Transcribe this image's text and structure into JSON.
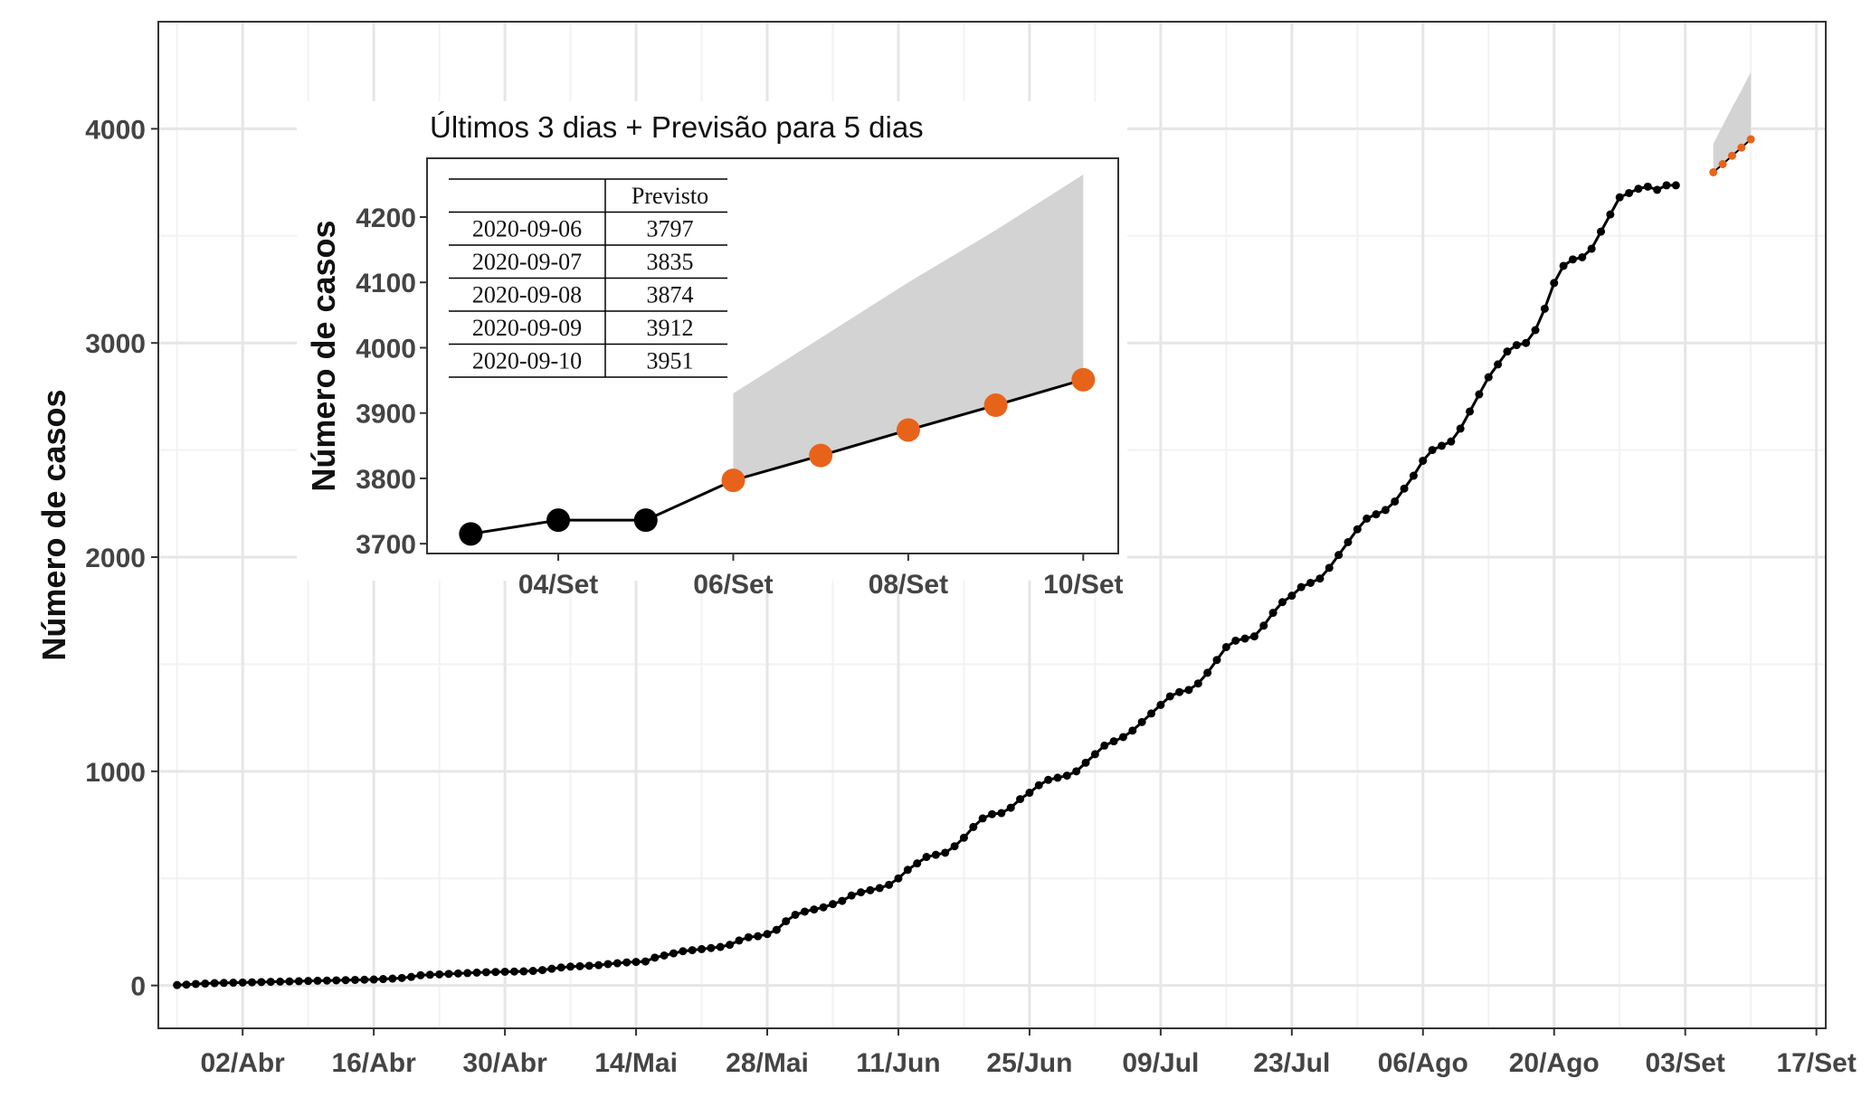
{
  "chart_data": [
    {
      "type": "line",
      "title": "",
      "xlabel": "",
      "ylabel": "Número de casos",
      "ylim": [
        -200,
        4500
      ],
      "xlim": [
        "2020-03-24",
        "2020-09-18"
      ],
      "x_ticks": [
        "02/Abr",
        "16/Abr",
        "30/Abr",
        "14/Mai",
        "28/Mai",
        "11/Jun",
        "25/Jun",
        "09/Jul",
        "23/Jul",
        "06/Ago",
        "20/Ago",
        "03/Set",
        "17/Set"
      ],
      "x_tick_dates": [
        "2020-04-02",
        "2020-04-16",
        "2020-04-30",
        "2020-05-14",
        "2020-05-28",
        "2020-06-11",
        "2020-06-25",
        "2020-07-09",
        "2020-07-23",
        "2020-08-06",
        "2020-08-20",
        "2020-09-03",
        "2020-09-17"
      ],
      "y_ticks": [
        0,
        1000,
        2000,
        3000,
        4000
      ],
      "grid": true,
      "series": [
        {
          "name": "",
          "color": "#000000",
          "x_start": "2020-03-26",
          "values": [
            2,
            4,
            7,
            9,
            11,
            12,
            13,
            14,
            15,
            16,
            17,
            18,
            19,
            20,
            21,
            22,
            23,
            24,
            25,
            26,
            27,
            28,
            30,
            32,
            35,
            40,
            48,
            50,
            52,
            54,
            56,
            58,
            60,
            62,
            63,
            64,
            65,
            66,
            68,
            72,
            78,
            84,
            88,
            90,
            92,
            95,
            100,
            104,
            108,
            110,
            112,
            130,
            140,
            150,
            160,
            165,
            170,
            175,
            180,
            190,
            210,
            225,
            230,
            240,
            260,
            300,
            330,
            345,
            355,
            365,
            380,
            395,
            420,
            435,
            445,
            455,
            470,
            500,
            540,
            570,
            600,
            610,
            620,
            650,
            690,
            740,
            780,
            800,
            805,
            830,
            870,
            900,
            935,
            960,
            970,
            980,
            1000,
            1040,
            1080,
            1120,
            1140,
            1160,
            1190,
            1230,
            1270,
            1310,
            1350,
            1370,
            1380,
            1410,
            1460,
            1520,
            1580,
            1610,
            1620,
            1630,
            1680,
            1740,
            1790,
            1820,
            1860,
            1880,
            1900,
            1950,
            2010,
            2070,
            2130,
            2180,
            2200,
            2220,
            2260,
            2320,
            2380,
            2450,
            2500,
            2520,
            2540,
            2600,
            2680,
            2760,
            2840,
            2900,
            2960,
            2990,
            3000,
            3060,
            3160,
            3280,
            3360,
            3390,
            3400,
            3440,
            3520,
            3600,
            3680,
            3700,
            3720,
            3730,
            3715,
            3736,
            3736
          ]
        },
        {
          "name": "",
          "color": "#E8631A",
          "x": [
            "2020-09-06",
            "2020-09-07",
            "2020-09-08",
            "2020-09-09",
            "2020-09-10"
          ],
          "values": [
            3797,
            3835,
            3874,
            3912,
            3951
          ],
          "band_low": [
            3797,
            3835,
            3874,
            3912,
            3951
          ],
          "band_high": [
            3930,
            4015,
            4100,
            4180,
            4265
          ]
        }
      ]
    },
    {
      "type": "line",
      "title": "Últimos 3 dias + Previsão para 5 dias",
      "xlabel": "",
      "ylabel": "Número de casos",
      "ylim": [
        3685,
        4290
      ],
      "x_ticks": [
        "04/Set",
        "06/Set",
        "08/Set",
        "10/Set"
      ],
      "y_ticks": [
        3700,
        3800,
        3900,
        4000,
        4100,
        4200
      ],
      "grid": false,
      "series": [
        {
          "name": "",
          "color": "#000000",
          "x": [
            "2020-09-03",
            "2020-09-04",
            "2020-09-05",
            "2020-09-06"
          ],
          "values": [
            3715,
            3736,
            3736,
            3797
          ]
        },
        {
          "name": "",
          "color": "#E8631A",
          "x": [
            "2020-09-06",
            "2020-09-07",
            "2020-09-08",
            "2020-09-09",
            "2020-09-10"
          ],
          "values": [
            3797,
            3835,
            3874,
            3912,
            3951
          ],
          "band_high": [
            3930,
            4015,
            4100,
            4180,
            4265
          ]
        }
      ],
      "table": {
        "header": [
          "",
          "Previsto"
        ],
        "rows": [
          [
            "2020-09-06",
            "3797"
          ],
          [
            "2020-09-07",
            "3835"
          ],
          [
            "2020-09-08",
            "3874"
          ],
          [
            "2020-09-09",
            "3912"
          ],
          [
            "2020-09-10",
            "3951"
          ]
        ]
      }
    }
  ]
}
